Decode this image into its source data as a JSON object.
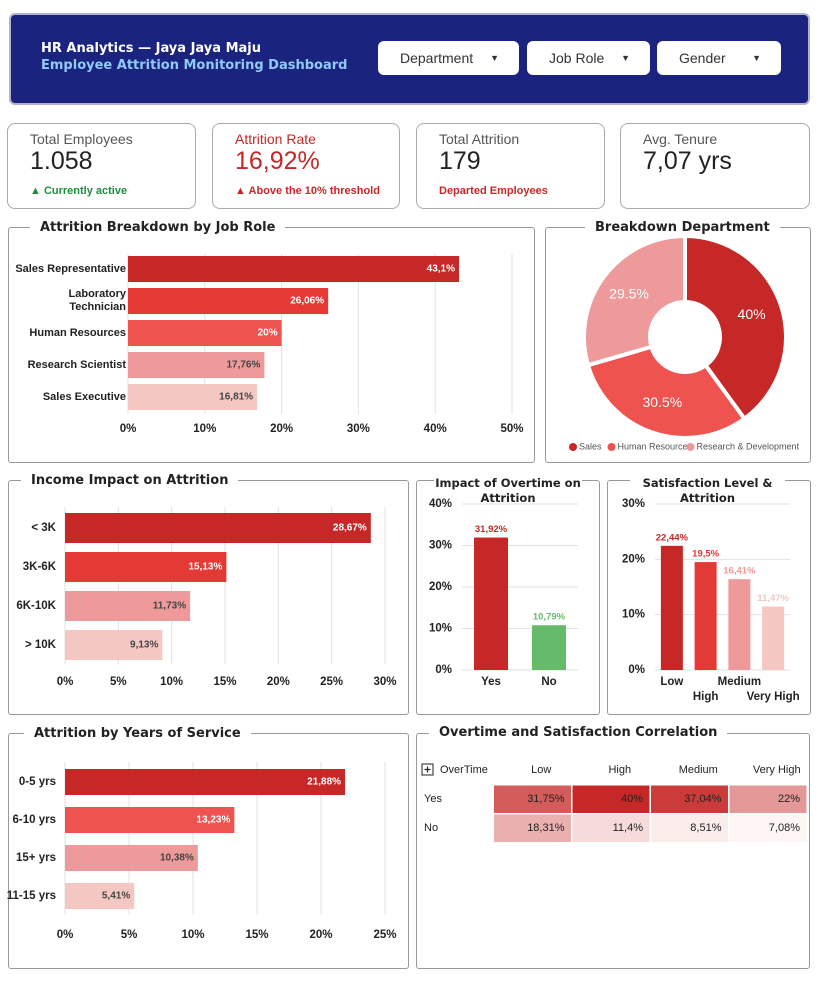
{
  "header": {
    "title": "HR Analytics — Jaya Jaya Maju",
    "subtitle": "Employee Attrition Monitoring Dashboard",
    "filters": [
      "Department",
      "Job Role",
      "Gender"
    ]
  },
  "kpis": [
    {
      "label": "Total Employees",
      "value": "1.058",
      "note": "▲ Currently active"
    },
    {
      "label": "Attrition Rate",
      "value": "16,92%",
      "note": "▲ Above the 10% threshold"
    },
    {
      "label": "Total Attrition",
      "value": "179",
      "note": "Departed Employees"
    },
    {
      "label": "Avg. Tenure",
      "value": "7,07 yrs"
    }
  ],
  "chart_data": [
    {
      "type": "hbar",
      "title": "Attrition Breakdown by Job Role",
      "categories": [
        "Sales Representative",
        "Laboratory Technician",
        "Human Resources",
        "Research Scientist",
        "Sales Executive"
      ],
      "values": [
        43.1,
        26.06,
        20,
        17.76,
        16.81
      ],
      "value_labels": [
        "43,1%",
        "26,06%",
        "20%",
        "17,76%",
        "16,81%"
      ],
      "colors": [
        "#c62828",
        "#e53935",
        "#ef5350",
        "#ef9a9a",
        "#f4c7c3"
      ],
      "xlim": [
        0,
        50
      ],
      "xticks": [
        {
          "value": 0,
          "label": "0%"
        },
        {
          "value": 10,
          "label": "10%"
        },
        {
          "value": 20,
          "label": "20%"
        },
        {
          "value": 30,
          "label": "30%"
        },
        {
          "value": 40,
          "label": "40%"
        },
        {
          "value": 50,
          "label": "50%"
        }
      ],
      "grid": true
    },
    {
      "type": "pie",
      "title": "Breakdown Department",
      "categories": [
        "Sales",
        "Human Resources",
        "Research & Development"
      ],
      "values": [
        40,
        30.5,
        29.5
      ],
      "value_labels": [
        "40%",
        "30.5%",
        "29.5%"
      ],
      "colors": [
        "#c62828",
        "#ef5350",
        "#ef9a9a"
      ],
      "legend": "bottom"
    },
    {
      "type": "hbar",
      "title": "Income Impact on Attrition",
      "categories": [
        "< 3K",
        "3K-6K",
        "6K-10K",
        "> 10K"
      ],
      "values": [
        28.67,
        15.13,
        11.73,
        9.13
      ],
      "value_labels": [
        "28,67%",
        "15,13%",
        "11,73%",
        "9,13%"
      ],
      "colors": [
        "#c62828",
        "#e53935",
        "#ef9a9a",
        "#f4c7c3"
      ],
      "xlim": [
        0,
        30
      ],
      "xticks": [
        {
          "value": 0,
          "label": "0%"
        },
        {
          "value": 5,
          "label": "5%"
        },
        {
          "value": 10,
          "label": "10%"
        },
        {
          "value": 15,
          "label": "15%"
        },
        {
          "value": 20,
          "label": "20%"
        },
        {
          "value": 25,
          "label": "25%"
        },
        {
          "value": 30,
          "label": "30%"
        }
      ],
      "grid": true
    },
    {
      "type": "vbar",
      "title": "Impact of Overtime on Attrition",
      "categories": [
        "Yes",
        "No"
      ],
      "values": [
        31.92,
        10.79
      ],
      "value_labels": [
        "31,92%",
        "10,79%"
      ],
      "colors": [
        "#c62828",
        "#66bb6a"
      ],
      "ylim": [
        0,
        40
      ],
      "yticks": [
        {
          "value": 0,
          "label": "0%"
        },
        {
          "value": 10,
          "label": "10%"
        },
        {
          "value": 20,
          "label": "20%"
        },
        {
          "value": 30,
          "label": "30%"
        },
        {
          "value": 40,
          "label": "40%"
        }
      ],
      "grid": true
    },
    {
      "type": "vbar",
      "title": "Satisfaction Level & Attrition",
      "categories": [
        "Low",
        "High",
        "Medium",
        "Very High"
      ],
      "values": [
        22.44,
        19.5,
        16.41,
        11.47
      ],
      "value_labels": [
        "22,44%",
        "19,5%",
        "16,41%",
        "11,47%"
      ],
      "colors": [
        "#c62828",
        "#e53935",
        "#ef9a9a",
        "#f4c7c3"
      ],
      "ylim": [
        0,
        30
      ],
      "yticks": [
        {
          "value": 0,
          "label": "0%"
        },
        {
          "value": 10,
          "label": "10%"
        },
        {
          "value": 20,
          "label": "20%"
        },
        {
          "value": 30,
          "label": "30%"
        }
      ],
      "grid": true
    },
    {
      "type": "hbar",
      "title": "Attrition by Years of Service",
      "categories": [
        "0-5 yrs",
        "6-10 yrs",
        "15+ yrs",
        "11-15 yrs"
      ],
      "values": [
        21.88,
        13.23,
        10.38,
        5.41
      ],
      "value_labels": [
        "21,88%",
        "13,23%",
        "10,38%",
        "5,41%"
      ],
      "colors": [
        "#c62828",
        "#ef5350",
        "#ef9a9a",
        "#f4c7c3"
      ],
      "xlim": [
        0,
        25
      ],
      "xticks": [
        {
          "value": 0,
          "label": "0%"
        },
        {
          "value": 5,
          "label": "5%"
        },
        {
          "value": 10,
          "label": "10%"
        },
        {
          "value": 15,
          "label": "15%"
        },
        {
          "value": 20,
          "label": "20%"
        },
        {
          "value": 25,
          "label": "25%"
        }
      ],
      "grid": true
    },
    {
      "type": "heatmap",
      "title": "Overtime and Satisfaction Correlation",
      "corner_label": "OverTime",
      "x": [
        "Low",
        "High",
        "Medium",
        "Very High"
      ],
      "y": [
        "Yes",
        "No"
      ],
      "values": [
        [
          31.75,
          40,
          37.04,
          22
        ],
        [
          18.31,
          11.4,
          8.51,
          7.08
        ]
      ],
      "value_labels": [
        [
          "31,75%",
          "40%",
          "37,04%",
          "22%"
        ],
        [
          "18,31%",
          "11,4%",
          "8,51%",
          "7,08%"
        ]
      ],
      "colors": [
        "#fdf6f5",
        "#c62828"
      ]
    }
  ]
}
